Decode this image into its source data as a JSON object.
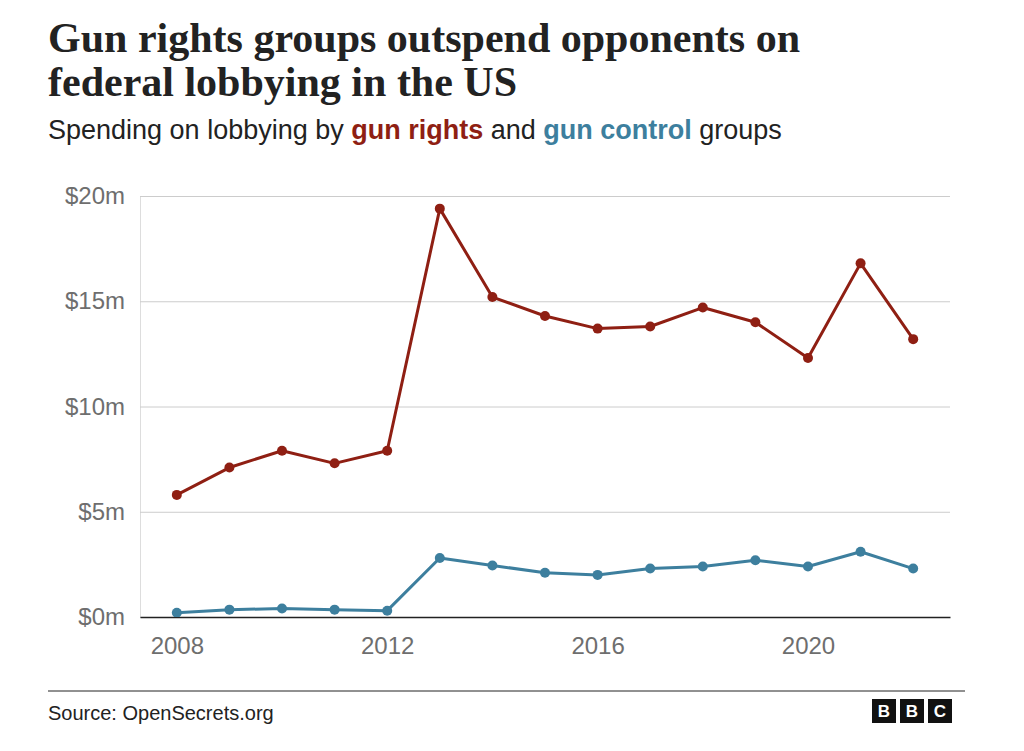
{
  "chart_data": {
    "type": "line",
    "title": "Gun rights groups outspend opponents on federal lobbying in the US",
    "subtitle": "Spending on lobbying by gun rights and gun control groups",
    "source": "Source: OpenSecrets.org",
    "brand": "BBC",
    "x": [
      2008,
      2009,
      2010,
      2011,
      2012,
      2013,
      2014,
      2015,
      2016,
      2017,
      2018,
      2019,
      2020,
      2021,
      2022
    ],
    "xlim": [
      2007.3,
      2022.7
    ],
    "xticks": [
      2008,
      2012,
      2016,
      2020
    ],
    "ylim": [
      0,
      20
    ],
    "yticks": [
      {
        "value": 0,
        "label": "$0m"
      },
      {
        "value": 5,
        "label": "$5m"
      },
      {
        "value": 10,
        "label": "$10m"
      },
      {
        "value": 15,
        "label": "$15m"
      },
      {
        "value": 20,
        "label": "$20m"
      }
    ],
    "grid": true,
    "series": [
      {
        "name": "gun rights",
        "color": "#8f1f13",
        "marker": "circle",
        "values": [
          5.8,
          7.1,
          7.9,
          7.3,
          7.9,
          19.4,
          15.2,
          14.3,
          13.7,
          13.8,
          14.7,
          14.0,
          12.3,
          16.8,
          13.2
        ]
      },
      {
        "name": "gun control",
        "color": "#3d7f9e",
        "marker": "circle",
        "values": [
          0.2,
          0.35,
          0.4,
          0.35,
          0.3,
          2.8,
          2.45,
          2.1,
          2.0,
          2.3,
          2.4,
          2.7,
          2.4,
          3.1,
          2.3
        ]
      }
    ]
  }
}
